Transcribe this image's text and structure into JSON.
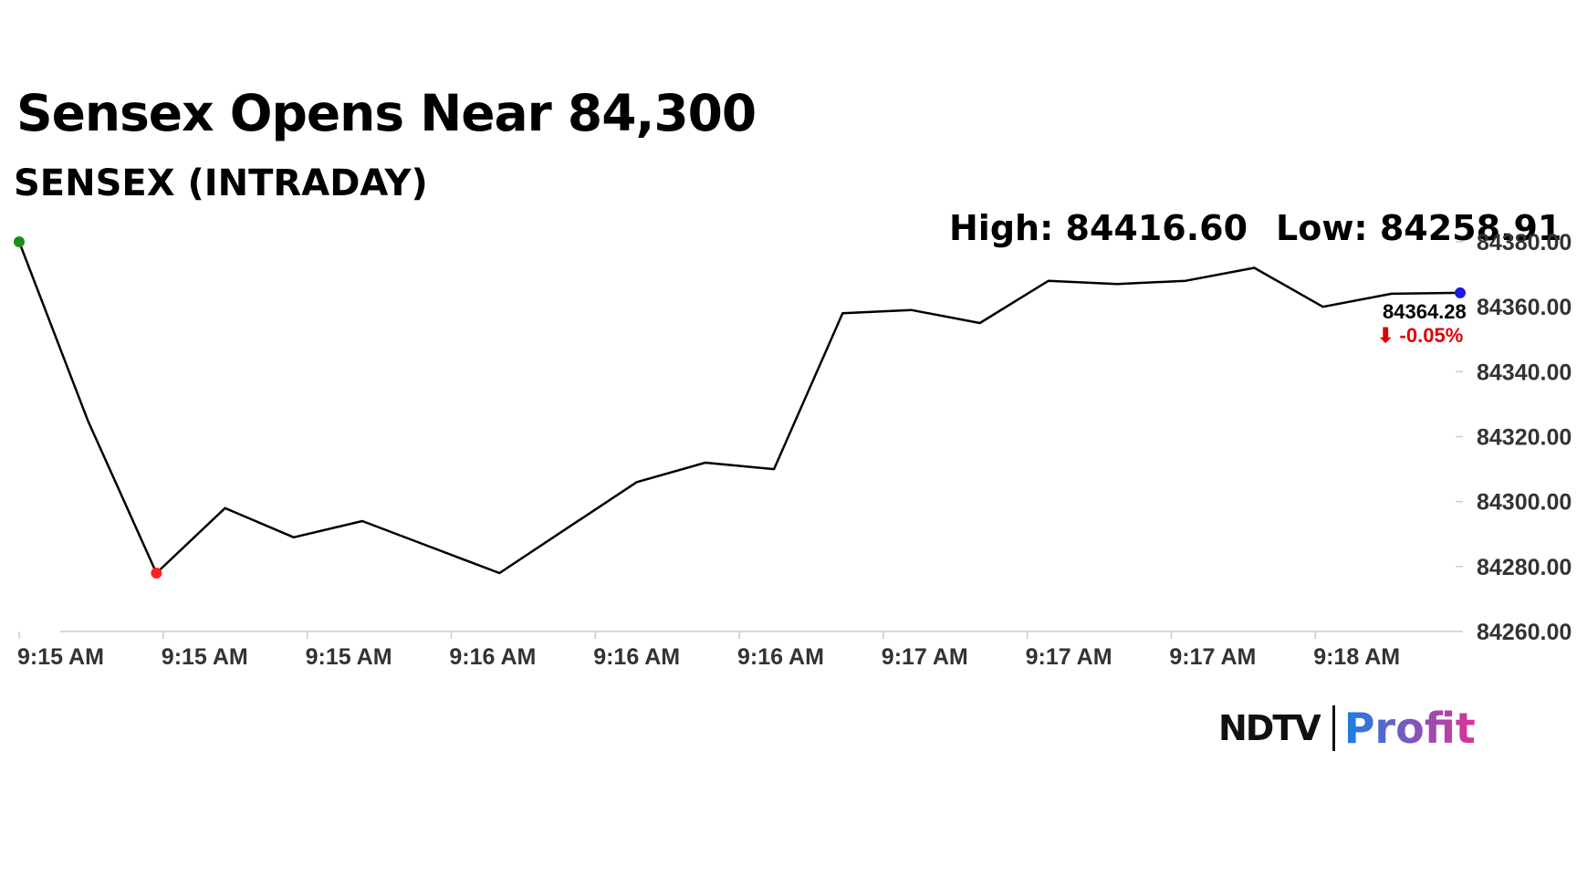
{
  "headline": "Sensex Opens Near 84,300",
  "subtitle": "SENSEX (INTRADAY)",
  "stats": {
    "high": "High: 84416.60",
    "low": "Low: 84258.91"
  },
  "last": {
    "value": "84364.28",
    "change": "⬇ -0.05%",
    "change_color": "#e00000"
  },
  "logo": {
    "ndtv": "NDTV",
    "profit": "Profit",
    "ndtv_dot_color": "#e00000",
    "profit_gradient": [
      "#1a7fe0",
      "#e0309a"
    ]
  },
  "colors": {
    "line": "#000000",
    "start_marker": "#1a8f1a",
    "low_marker": "#ff2020",
    "end_marker": "#1a1ae0"
  },
  "chart_data": {
    "type": "line",
    "title": "Sensex Opens Near 84,300",
    "subtitle": "SENSEX (INTRADAY)",
    "x_tick_labels": [
      "9:15 AM",
      "9:15 AM",
      "9:15 AM",
      "9:16 AM",
      "9:16 AM",
      "9:16 AM",
      "9:17 AM",
      "9:17 AM",
      "9:17 AM",
      "9:18 AM"
    ],
    "y_tick_labels": [
      "84380.00",
      "84360.00",
      "84340.00",
      "84320.00",
      "84300.00",
      "84280.00",
      "84260.00"
    ],
    "ylim": [
      84260,
      84380
    ],
    "grid": false,
    "series": [
      {
        "values": [
          84380,
          84325,
          84278,
          84298,
          84289,
          84294,
          84286,
          84278,
          84292,
          84306,
          84312,
          84310,
          84358,
          84359,
          84355,
          84368,
          84367,
          84368,
          84372,
          84360,
          84364,
          84364.28
        ]
      }
    ],
    "markers": {
      "start": 84380,
      "low": 84278,
      "end": 84364.28
    }
  }
}
